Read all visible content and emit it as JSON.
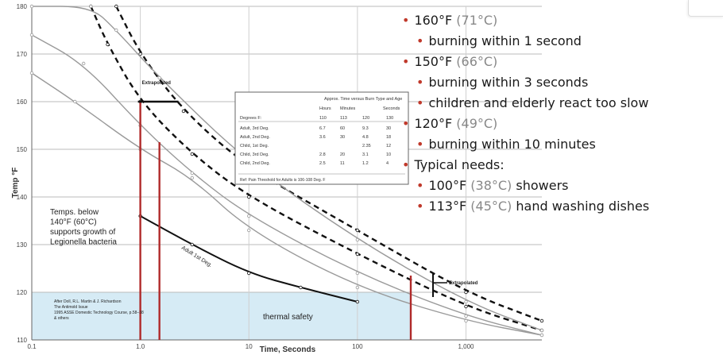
{
  "chart_data": {
    "type": "line",
    "xlabel": "Time, Seconds",
    "ylabel": "Temp °F",
    "xscale": "log",
    "xlim": [
      0.1,
      5000
    ],
    "ylim": [
      110,
      180
    ],
    "x_ticks": [
      "0.1",
      "1.0",
      "10",
      "100",
      "1,000"
    ],
    "y_ticks": [
      "110",
      "120",
      "130",
      "140",
      "150",
      "160",
      "170",
      "180"
    ],
    "grid": true,
    "curves": [
      {
        "style": "dashed-black",
        "points": [
          [
            0.35,
            180
          ],
          [
            0.5,
            172
          ],
          [
            1.0,
            160
          ],
          [
            3,
            149
          ],
          [
            10,
            140
          ],
          [
            100,
            128
          ],
          [
            1000,
            117
          ],
          [
            5000,
            112
          ]
        ]
      },
      {
        "style": "dashed-black",
        "points": [
          [
            0.6,
            180
          ],
          [
            1.0,
            170
          ],
          [
            2.5,
            158
          ],
          [
            10,
            146
          ],
          [
            100,
            133
          ],
          [
            1000,
            120
          ],
          [
            5000,
            114
          ]
        ]
      },
      {
        "style": "gray",
        "points": [
          [
            0.1,
            174
          ],
          [
            0.3,
            168
          ],
          [
            1.0,
            155
          ],
          [
            3,
            145
          ],
          [
            10,
            136
          ],
          [
            100,
            124
          ],
          [
            1000,
            115
          ],
          [
            5000,
            111
          ]
        ]
      },
      {
        "style": "gray",
        "points": [
          [
            0.1,
            180
          ],
          [
            0.35,
            180
          ],
          [
            0.6,
            175
          ],
          [
            1.5,
            165
          ],
          [
            10,
            147
          ],
          [
            100,
            131
          ],
          [
            1000,
            118
          ],
          [
            5000,
            112
          ]
        ]
      },
      {
        "style": "gray",
        "points": [
          [
            0.1,
            166
          ],
          [
            0.25,
            160
          ],
          [
            1.0,
            150
          ],
          [
            3,
            144
          ],
          [
            10,
            133
          ],
          [
            100,
            121
          ],
          [
            1000,
            114
          ],
          [
            5000,
            111
          ]
        ]
      },
      {
        "style": "black",
        "points": [
          [
            1.0,
            136
          ],
          [
            3,
            130
          ],
          [
            10,
            124
          ],
          [
            30,
            121
          ],
          [
            100,
            118
          ]
        ]
      }
    ],
    "vertical_markers": [
      1.0,
      1.5,
      310
    ],
    "annotations": {
      "extrapolated_top": "Extrapolated",
      "extrapolated_right": "Extrapolated",
      "legionella": [
        "Temps. below",
        "140°F (60°C)",
        "supports growth of",
        "Legionella bacteria"
      ],
      "curve_label": "Adult 1st Deg.",
      "thermal_safety": "thermal safety",
      "source": [
        "After Doll, R.L. Martin & J. Richardson",
        "The Antimold Issue",
        "1995 ASSE Domestic Technology Course, p.58–38",
        "& others"
      ]
    },
    "inset_table": {
      "title": "Approx. Time versus Burn Type and Age",
      "group_headers": [
        "Hours",
        "Minutes",
        "Seconds"
      ],
      "headers": [
        "Degrees F:",
        "110",
        "113",
        "120",
        "130"
      ],
      "rows": [
        [
          "Adult, 3rd Deg.",
          "6.7",
          "60",
          "9.3",
          "30"
        ],
        [
          "Adult, 2nd Deg.",
          "3.6",
          "30",
          "4.8",
          "18"
        ],
        [
          "Child, 1st Deg.",
          "",
          "",
          "2.35",
          "12"
        ],
        [
          "Child, 3rd Deg.",
          "2.8",
          "20",
          "3.1",
          "10"
        ],
        [
          "Child, 2nd Deg.",
          "2.5",
          "11",
          "1.2",
          "4"
        ]
      ],
      "footer": "Ref: Pain Threshold for Adults is 106-108 Deg. F"
    }
  },
  "colors": {
    "marker": "#b02a2a",
    "safety_zone": "#d6ebf5",
    "bullet": "#c0392b",
    "celsius": "#888888"
  },
  "bullets": [
    {
      "fahrenheit": "160°F",
      "celsius": "(71°C)",
      "subs": [
        {
          "text": "burning within 1 second"
        }
      ]
    },
    {
      "fahrenheit": "150°F",
      "celsius": "(66°C)",
      "subs": [
        {
          "text": "burning within 3 seconds"
        },
        {
          "text": "children and elderly react too slow"
        }
      ]
    },
    {
      "fahrenheit": "120°F",
      "celsius": "(49°C)",
      "subs": [
        {
          "text": "burning within 10 minutes"
        }
      ]
    }
  ],
  "needs": {
    "heading": "Typical needs:",
    "items": [
      {
        "fahrenheit": "100°F",
        "celsius": "(38°C)",
        "text": "showers"
      },
      {
        "fahrenheit": "113°F",
        "celsius": "(45°C)",
        "text": "hand washing dishes"
      }
    ]
  }
}
